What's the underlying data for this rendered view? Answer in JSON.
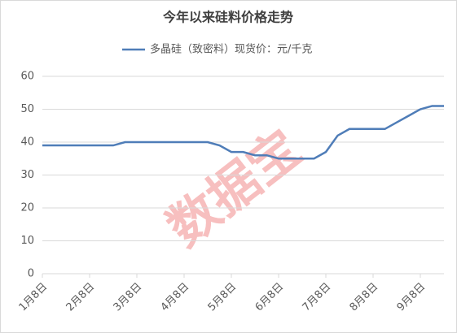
{
  "chart_data": {
    "type": "line",
    "title": "今年以来硅料价格走势",
    "watermark": "数据宝",
    "categories": [
      "1月8日",
      null,
      null,
      null,
      "2月8日",
      null,
      null,
      null,
      "3月8日",
      null,
      null,
      null,
      "4月8日",
      null,
      null,
      null,
      "5月8日",
      null,
      null,
      null,
      "6月8日",
      null,
      null,
      null,
      "7月8日",
      null,
      null,
      null,
      "8月8日",
      null,
      null,
      null,
      "9月8日",
      null,
      null
    ],
    "series": [
      {
        "name": "多晶硅（致密料）现货价：元/千克",
        "color": "#4f7db8",
        "values": [
          39,
          39,
          39,
          39,
          39,
          39,
          39,
          40,
          40,
          40,
          40,
          40,
          40,
          40,
          40,
          39,
          37,
          37,
          36,
          36,
          35,
          35,
          35,
          35,
          37,
          42,
          44,
          44,
          44,
          44,
          46,
          48,
          50,
          51,
          51
        ]
      }
    ],
    "ylim": [
      0,
      60
    ],
    "yticks": [
      0,
      10,
      20,
      30,
      40,
      50,
      60
    ],
    "grid": true,
    "legend": "top"
  }
}
